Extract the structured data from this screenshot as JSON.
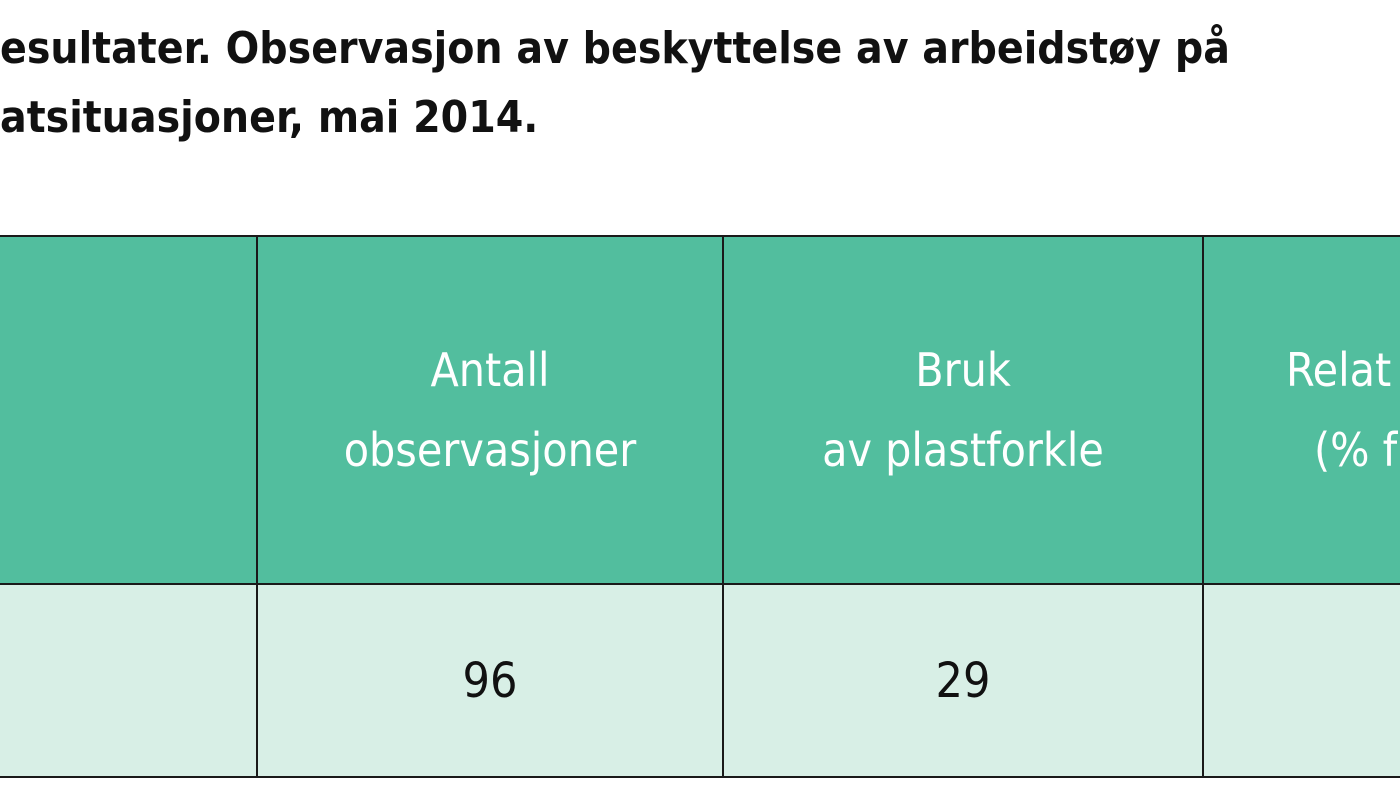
{
  "caption": {
    "line1": "esultater. Observasjon av beskyttelse av arbeidstøy på",
    "line2": "atsituasjoner, mai 2014."
  },
  "table": {
    "header": {
      "col0": "",
      "col1_line1": "Antall",
      "col1_line2": "observasjoner",
      "col2_line1": "Bruk",
      "col2_line2": "av plastforkle",
      "col3_line1": "Relat",
      "col3_line2": "(% f"
    },
    "row": {
      "col0": "",
      "col1": "96",
      "col2": "29",
      "col3": ""
    }
  },
  "colors": {
    "header_bg": "#52be9e",
    "row_bg": "#d8efe6",
    "border": "#1a1a1a"
  }
}
